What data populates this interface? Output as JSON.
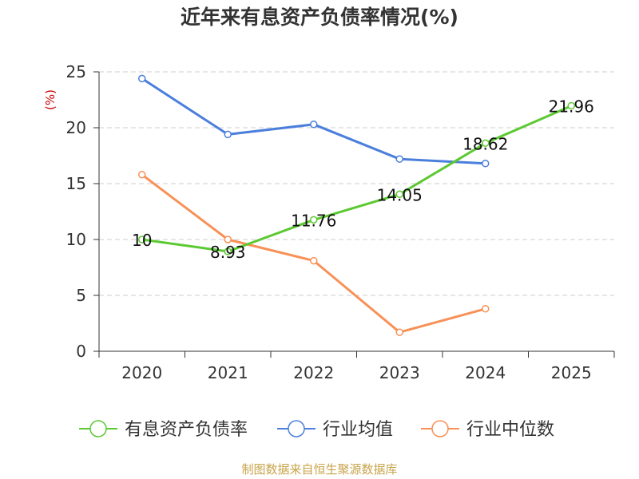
{
  "chart_data": {
    "type": "line",
    "title": "近年来有息资产负债率情况(%)",
    "ylabel": "(%)",
    "xlabel": "",
    "categories": [
      "2020",
      "2021",
      "2022",
      "2023",
      "2024",
      "2025"
    ],
    "ylim": [
      0,
      25
    ],
    "yticks": [
      0,
      5,
      10,
      15,
      20,
      25
    ],
    "grid": true,
    "legend_position": "bottom",
    "series": [
      {
        "name": "有息资产负债率",
        "color": "#5cc932",
        "values": [
          10,
          8.93,
          11.76,
          14.05,
          18.62,
          21.96
        ],
        "labels": [
          "10",
          "8.93",
          "11.76",
          "14.05",
          "18.62",
          "21.96"
        ]
      },
      {
        "name": "行业均值",
        "color": "#4b7fdc",
        "values": [
          24.4,
          19.4,
          20.3,
          17.2,
          16.8,
          null
        ]
      },
      {
        "name": "行业中位数",
        "color": "#f79157",
        "values": [
          15.8,
          10.0,
          8.1,
          1.7,
          3.8,
          null
        ]
      }
    ],
    "source": "制图数据来自恒生聚源数据库"
  }
}
